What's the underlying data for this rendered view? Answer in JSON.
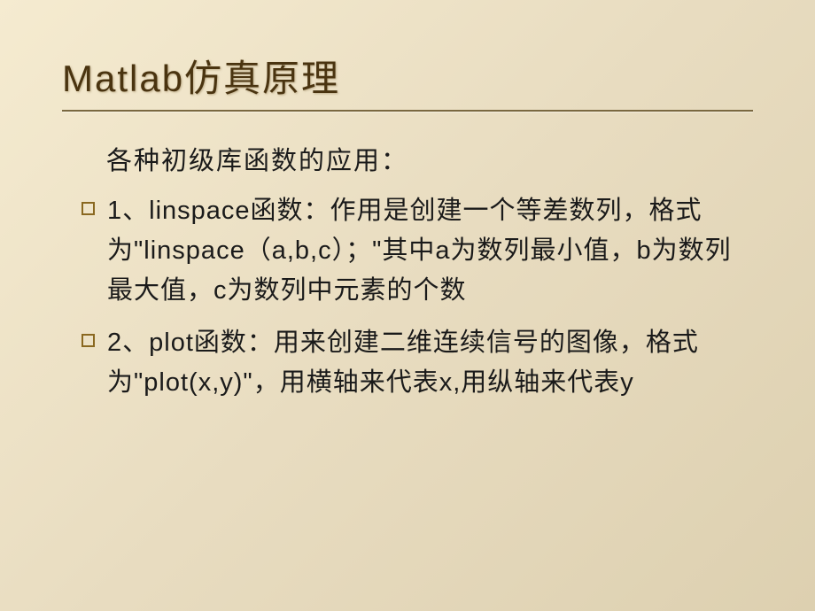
{
  "slide": {
    "title": "Matlab仿真原理",
    "intro": "各种初级库函数的应用：",
    "bullets": [
      "1、linspace函数：作用是创建一个等差数列，格式为\"linspace（a,b,c）；\"其中a为数列最小值，b为数列最大值，c为数列中元素的个数",
      "2、plot函数：用来创建二维连续信号的图像，格式为\"plot(x,y)\"，用横轴来代表x,用纵轴来代表y"
    ],
    "colors": {
      "background_start": "#f5ebd0",
      "background_end": "#ddd0b0",
      "title_color": "#4a3410",
      "text_color": "#1a1a1a",
      "bullet_border": "#8a6820",
      "underline_color": "#7a6840"
    },
    "typography": {
      "title_fontsize": 42,
      "body_fontsize": 29,
      "font_family": "SimHei"
    }
  }
}
